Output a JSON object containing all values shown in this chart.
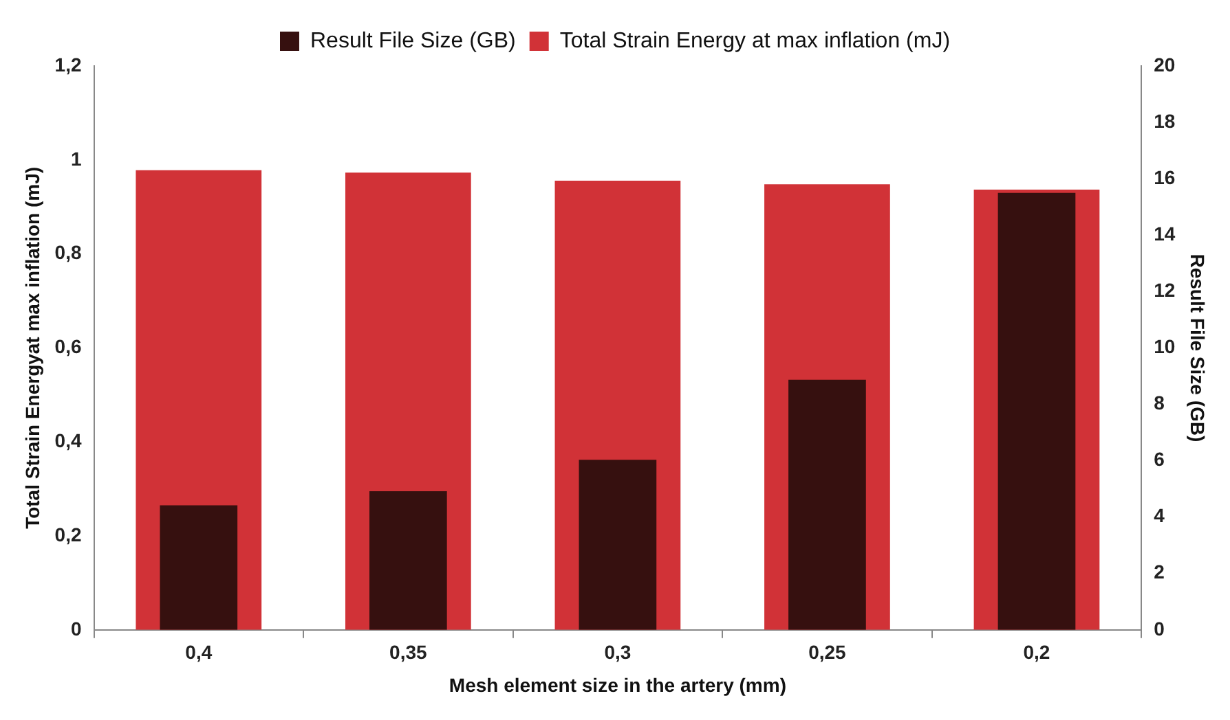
{
  "chart_data": {
    "type": "bar",
    "xlabel": "Mesh element size in the artery (mm)",
    "ylabel": "Total Strain Energyat max inflation (mJ)",
    "y2label": "Result File Size (GB)",
    "categories": [
      "0,4",
      "0,35",
      "0,3",
      "0,25",
      "0,2"
    ],
    "series": [
      {
        "name": "Total Strain Energy at max inflation (mJ)",
        "color": "#d13237",
        "values": [
          0.978,
          0.973,
          0.956,
          0.948,
          0.937
        ]
      },
      {
        "name": "Result File Size (GB)",
        "color": "#36100f",
        "axis": "y2",
        "values": [
          4.42,
          4.92,
          6.03,
          8.87,
          15.5
        ]
      }
    ],
    "ylim": [
      0,
      1.2
    ],
    "yticks": [
      0,
      {
        "value": 0.2,
        "label": "0,2"
      },
      {
        "value": 0.4,
        "label": "0,4"
      },
      {
        "value": 0.6,
        "label": "0,6"
      },
      {
        "value": 0.8,
        "label": "0,8"
      },
      1,
      {
        "value": 1.2,
        "label": "1,2"
      }
    ],
    "y2lim": [
      0,
      20
    ],
    "y2ticks": [
      0,
      2,
      4,
      6,
      8,
      10,
      12,
      14,
      16,
      18,
      20
    ],
    "grid": false,
    "legend": "top"
  }
}
